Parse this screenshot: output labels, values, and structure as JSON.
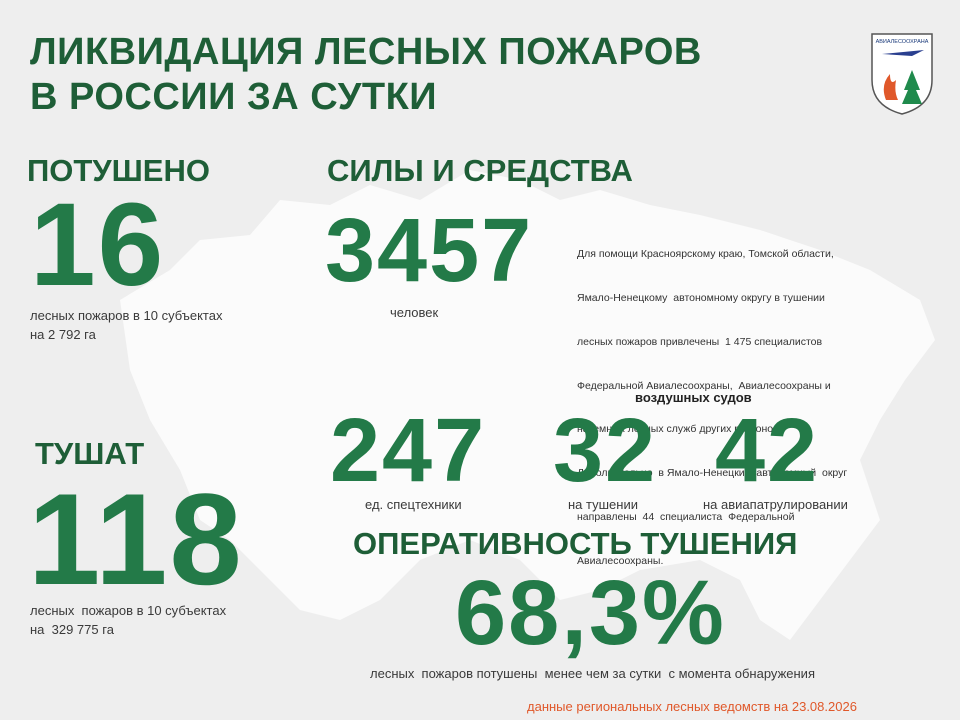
{
  "header": {
    "title": [
      "ЛИКВИДАЦИЯ ЛЕСНЫХ ПОЖАРОВ",
      "В РОССИИ ЗА СУТКИ"
    ],
    "logo": "АВИАЛЕСООХРАНА"
  },
  "extinguished": {
    "heading": "ПОТУШЕНО",
    "value": "16",
    "caption": [
      "лесных пожаров в 10 субъектах",
      "на 2 792 га"
    ]
  },
  "forces": {
    "heading": "СИЛЫ И СРЕДСТВА",
    "people": {
      "value": "3457",
      "caption": "человек"
    },
    "note": [
      "Для помощи Красноярскому краю, Томской области,",
      "Ямало-Ненецкому  автономному округу в тушении",
      "лесных пожаров привлечены  1 475 специалистов",
      "Федеральной Авиалесоохраны,  Авиалесоохраны и",
      "наземных лесных служб других регионов.",
      "Дополнительно  в Ямало-Ненецкий  автономный  округ",
      "направлены  44  специалиста  Федеральной",
      "Авиалесоохраны."
    ],
    "equipment": {
      "value": "247",
      "caption": "ед. спецтехники"
    },
    "aircraft": {
      "heading": "воздушных судов",
      "items": [
        {
          "value": "32",
          "caption": "на тушении"
        },
        {
          "value": "42",
          "caption": "на авиапатрулировании"
        }
      ]
    }
  },
  "burning": {
    "heading": "ТУШАТ",
    "value": "118",
    "caption": [
      "лесных  пожаров в 10 субъектах",
      "на  329 775 га"
    ]
  },
  "efficiency": {
    "heading": "ОПЕРАТИВНОСТЬ ТУШЕНИЯ",
    "value": "68,3%",
    "caption": "лесных  пожаров потушены  менее чем за сутки  с момента обнаружения"
  },
  "footer": "данные региональных лесных ведомств на 23.08.2026"
}
